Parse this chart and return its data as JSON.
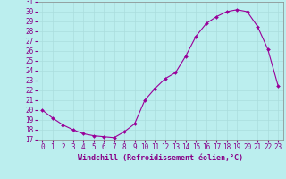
{
  "x_values": [
    0,
    1,
    2,
    3,
    4,
    5,
    6,
    7,
    8,
    9,
    10,
    11,
    12,
    13,
    14,
    15,
    16,
    17,
    18,
    19,
    20,
    21,
    22,
    23
  ],
  "y_values": [
    20.0,
    19.2,
    18.5,
    18.0,
    17.6,
    17.4,
    17.3,
    17.2,
    17.8,
    18.6,
    21.0,
    22.2,
    23.2,
    23.8,
    25.5,
    27.5,
    28.8,
    29.5,
    30.0,
    30.2,
    30.0,
    28.5,
    26.2,
    22.5
  ],
  "line_color": "#990099",
  "marker": "D",
  "marker_size": 2,
  "xlabel": "Windchill (Refroidissement éolien,°C)",
  "xlim": [
    -0.5,
    23.5
  ],
  "ylim": [
    17,
    31
  ],
  "yticks": [
    17,
    18,
    19,
    20,
    21,
    22,
    23,
    24,
    25,
    26,
    27,
    28,
    29,
    30,
    31
  ],
  "xticks": [
    0,
    1,
    2,
    3,
    4,
    5,
    6,
    7,
    8,
    9,
    10,
    11,
    12,
    13,
    14,
    15,
    16,
    17,
    18,
    19,
    20,
    21,
    22,
    23
  ],
  "grid_color": "#aadddd",
  "bg_color": "#bbeeee",
  "font_color": "#880088",
  "font_size": 5.5,
  "xlabel_fontsize": 6.0
}
